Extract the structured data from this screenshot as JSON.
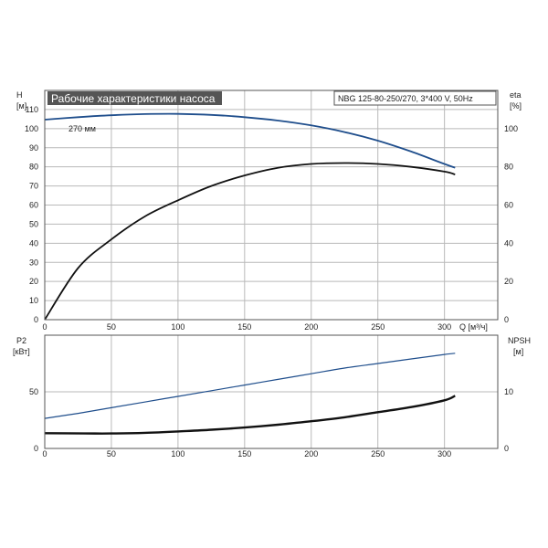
{
  "chart_data": [
    {
      "type": "line",
      "title": "Рабочие характеристики насоса",
      "pump_info": "NBG 125-80-250/270, 3*400 V, 50Hz",
      "xlabel": "Q [м³/ч]",
      "x_ticks": [
        0,
        50,
        100,
        150,
        200,
        250,
        300
      ],
      "xlim": [
        0,
        340
      ],
      "left_axis": {
        "name": "H",
        "unit": "[м]",
        "ylim": [
          0,
          120
        ],
        "ticks": [
          0,
          10,
          20,
          30,
          40,
          50,
          60,
          70,
          80,
          90,
          100,
          110
        ]
      },
      "right_axis": {
        "name": "eta",
        "unit": "[%]",
        "ylim": [
          0,
          120
        ],
        "ticks": [
          0,
          20,
          40,
          60,
          80,
          100
        ]
      },
      "grid": true,
      "series": [
        {
          "name": "270 мм",
          "axis": "left",
          "color": "#1f4e8c",
          "x": [
            0,
            25,
            50,
            75,
            100,
            125,
            150,
            175,
            200,
            225,
            250,
            275,
            300,
            308
          ],
          "y": [
            104.7,
            106,
            107,
            107.6,
            107.7,
            107.2,
            106,
            104.2,
            101.7,
            98.2,
            93.7,
            88,
            81.5,
            79.5
          ]
        },
        {
          "axis": "right",
          "color": "#111111",
          "x": [
            0,
            25,
            50,
            75,
            100,
            125,
            150,
            175,
            200,
            225,
            250,
            275,
            300,
            308
          ],
          "y": [
            0,
            27,
            42,
            54,
            62.5,
            70,
            75.5,
            79.5,
            81.5,
            82,
            81.5,
            80,
            77.5,
            76
          ]
        }
      ]
    },
    {
      "type": "line",
      "xlim": [
        0,
        340
      ],
      "left_axis": {
        "name": "P2",
        "unit": "[кВт]",
        "ylim": [
          0,
          100
        ],
        "ticks": [
          0,
          50
        ]
      },
      "right_axis": {
        "name": "NPSH",
        "unit": "[м]",
        "ylim": [
          0,
          20
        ],
        "ticks": [
          0,
          10
        ]
      },
      "grid": true,
      "series": [
        {
          "axis": "left",
          "color": "#1f4e8c",
          "x": [
            0,
            25,
            50,
            75,
            100,
            125,
            150,
            175,
            200,
            225,
            250,
            275,
            300,
            308
          ],
          "y": [
            26.5,
            31,
            36,
            41,
            46,
            51,
            56,
            61,
            66,
            71,
            75,
            79,
            83,
            84
          ]
        },
        {
          "axis": "right",
          "color": "#111111",
          "x": [
            0,
            30,
            50,
            75,
            100,
            125,
            150,
            175,
            200,
            225,
            250,
            275,
            300,
            308
          ],
          "y": [
            2.7,
            2.65,
            2.65,
            2.75,
            3.0,
            3.3,
            3.7,
            4.2,
            4.8,
            5.5,
            6.4,
            7.3,
            8.5,
            9.3
          ]
        }
      ]
    }
  ]
}
